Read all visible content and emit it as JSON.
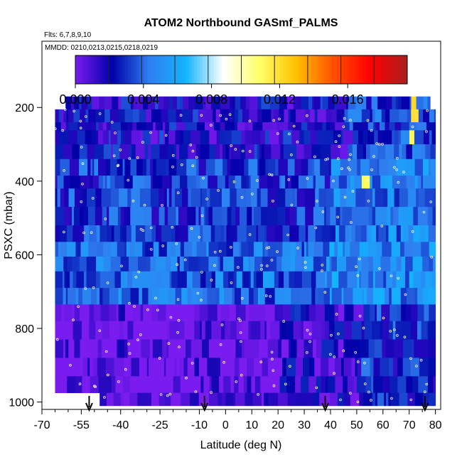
{
  "chart_data": {
    "type": "heatmap",
    "title": "ATOM2 Northbound GASmf_PALMS",
    "flights_label": "Flts: 6,7,8,9,10",
    "dates_label": "MMDD: 0210,0213,0215,0218,0219",
    "xlabel": "Latitude (deg N)",
    "ylabel": "PSXC (mbar)",
    "xlim": [
      -70,
      82
    ],
    "ylim": [
      1020,
      20
    ],
    "y_reversed": true,
    "x_ticks": [
      -70,
      -55,
      -40,
      -25,
      -10,
      0,
      10,
      20,
      30,
      40,
      50,
      60,
      70,
      80
    ],
    "x_tick_labels": [
      "-70",
      "-55",
      "-40",
      "-25",
      "-10",
      "0",
      "10",
      "20",
      "30",
      "40",
      "50",
      "60",
      "70",
      "80"
    ],
    "y_ticks": [
      200,
      400,
      600,
      800,
      1000
    ],
    "y_tick_labels": [
      "200",
      "400",
      "600",
      "800",
      "1000"
    ],
    "colorbar": {
      "min": 0.0,
      "max": 0.0195,
      "tick_values": [
        0.0,
        0.004,
        0.008,
        0.012,
        0.016
      ],
      "tick_labels": [
        "0.000",
        "0.004",
        "0.008",
        "0.012",
        "0.016"
      ]
    },
    "profile_latitudes": [
      -52,
      -8,
      38,
      76
    ],
    "grid": false,
    "legend": "colorbar-top"
  },
  "colors": {
    "scale": [
      "#7a1cf0",
      "#0000a8",
      "#2f7ef0",
      "#12b4ff",
      "#ffffff",
      "#ffff66",
      "#ffc000",
      "#ff5000",
      "#ff0000",
      "#a82020"
    ],
    "background": "#ffffff"
  }
}
